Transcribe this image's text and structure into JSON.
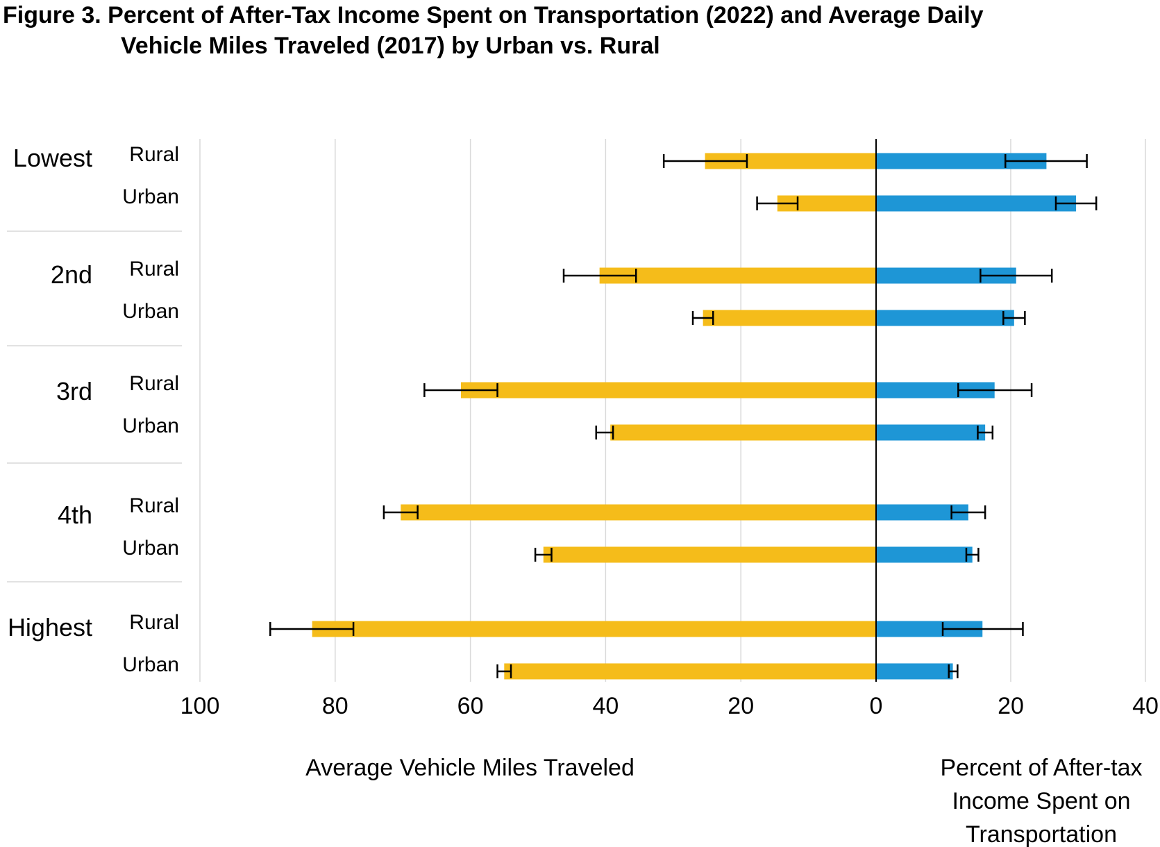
{
  "chart_data": {
    "type": "bar",
    "title_line1": "Figure 3. Percent of After-Tax Income Spent on Transportation (2022) and Average Daily",
    "title_line2": "Vehicle Miles Traveled (2017) by Urban vs. Rural",
    "groups": [
      "Lowest",
      "2nd",
      "3rd",
      "4th",
      "Highest"
    ],
    "subgroups": [
      "Rural",
      "Urban"
    ],
    "left_axis": {
      "label": "Average Vehicle Miles Traveled",
      "range": [
        0,
        100
      ],
      "ticks": [
        "100",
        "80",
        "60",
        "40",
        "20",
        "0"
      ]
    },
    "right_axis": {
      "label_lines": [
        "Percent of After-tax",
        "Income Spent on",
        "Transportation"
      ],
      "range": [
        0,
        40
      ],
      "ticks": [
        "20",
        "40"
      ]
    },
    "series": [
      {
        "name": "Average Vehicle Miles Traveled",
        "color": "#F5BC1A",
        "values": [
          25.3,
          14.6,
          40.9,
          25.6,
          61.4,
          39.3,
          70.3,
          49.2,
          83.4,
          55.0
        ],
        "error_low": [
          19.1,
          11.6,
          35.5,
          24.1,
          56.0,
          38.9,
          67.8,
          48.0,
          77.3,
          54.0
        ],
        "error_high": [
          31.4,
          17.6,
          46.2,
          27.1,
          66.8,
          41.4,
          72.8,
          50.4,
          89.6,
          56.0
        ]
      },
      {
        "name": "Percent of After-tax Income Spent on Transportation",
        "color": "#1E96D6",
        "values": [
          25.3,
          29.7,
          20.8,
          20.5,
          17.6,
          16.2,
          13.7,
          14.3,
          15.8,
          11.4
        ],
        "error_low": [
          19.2,
          26.7,
          15.5,
          18.9,
          12.2,
          15.1,
          11.2,
          13.4,
          9.9,
          10.8
        ],
        "error_high": [
          31.3,
          32.7,
          26.1,
          22.1,
          23.1,
          17.3,
          16.2,
          15.2,
          21.8,
          12.1
        ]
      }
    ],
    "gridlines": true
  }
}
